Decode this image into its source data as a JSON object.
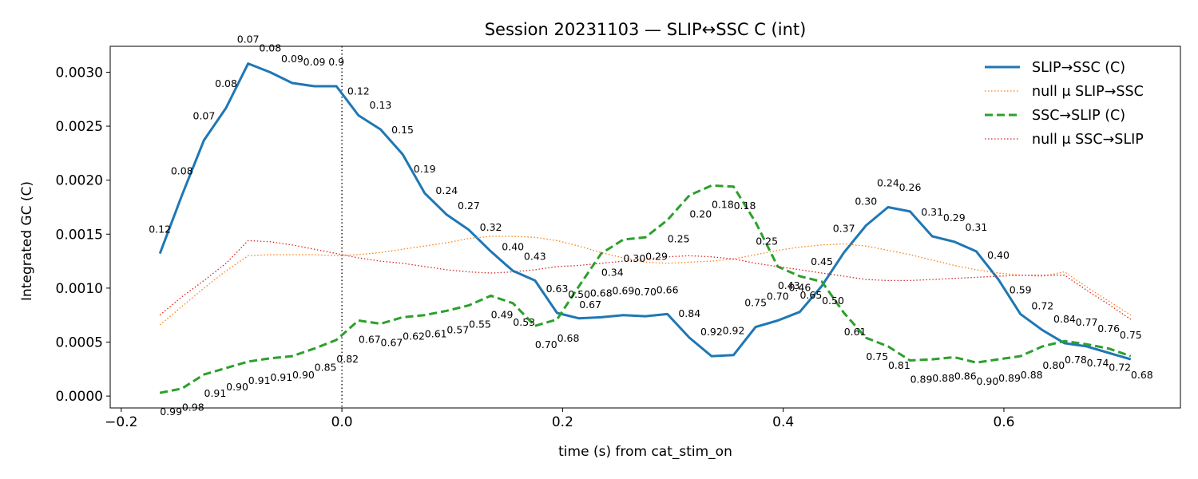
{
  "chart_data": {
    "type": "line",
    "title": "Session 20231103 — SLIP↔SSC C (int)",
    "xlabel": "time (s) from cat_stim_on",
    "ylabel": "Integrated GC (C)",
    "xlim": [
      -0.21,
      0.76
    ],
    "ylim": [
      -0.00011,
      0.00324
    ],
    "xticks": [
      -0.2,
      0.0,
      0.2,
      0.4,
      0.6
    ],
    "xtick_labels": [
      "−0.2",
      "0.0",
      "0.2",
      "0.4",
      "0.6"
    ],
    "yticks": [
      0.0,
      0.0005,
      0.001,
      0.0015,
      0.002,
      0.0025,
      0.003
    ],
    "ytick_labels": [
      "0.0000",
      "0.0005",
      "0.0010",
      "0.0015",
      "0.0020",
      "0.0025",
      "0.0030"
    ],
    "vline_x": 0.0,
    "legend_position": "top-right",
    "x": [
      -0.165,
      -0.145,
      -0.125,
      -0.105,
      -0.085,
      -0.065,
      -0.045,
      -0.025,
      -0.005,
      0.015,
      0.035,
      0.055,
      0.075,
      0.095,
      0.115,
      0.135,
      0.155,
      0.175,
      0.195,
      0.215,
      0.235,
      0.255,
      0.275,
      0.295,
      0.315,
      0.335,
      0.355,
      0.375,
      0.395,
      0.415,
      0.435,
      0.455,
      0.475,
      0.495,
      0.515,
      0.535,
      0.555,
      0.575,
      0.595,
      0.615,
      0.635,
      0.655,
      0.675,
      0.695,
      0.715
    ],
    "series": [
      {
        "name": "SLIP→SSC (C)",
        "color": "#1f77b4",
        "style": "solid",
        "values": [
          0.00132,
          0.00186,
          0.00237,
          0.00267,
          0.00308,
          0.003,
          0.0029,
          0.00287,
          0.00287,
          0.0026,
          0.00247,
          0.00224,
          0.00188,
          0.00168,
          0.00154,
          0.00134,
          0.00116,
          0.00107,
          0.00077,
          0.00072,
          0.00073,
          0.00075,
          0.00074,
          0.00076,
          0.00054,
          0.00037,
          0.00038,
          0.00064,
          0.0007,
          0.00078,
          0.00102,
          0.00133,
          0.00158,
          0.00175,
          0.00171,
          0.00148,
          0.00143,
          0.00134,
          0.00108,
          0.00076,
          0.00061,
          0.00049,
          0.00046,
          0.0004,
          0.00034
        ],
        "pvals": [
          "0.12",
          "0.08",
          "0.07",
          "0.08",
          "0.07",
          "0.08",
          "0.09",
          "0.09",
          "0.9",
          "0.12",
          "0.13",
          "0.15",
          "0.19",
          "0.24",
          "0.27",
          "0.32",
          "0.40",
          "0.43",
          "0.63",
          "0.50",
          "0.68",
          "0.69",
          "0.70",
          "0.66",
          "0.84",
          "0.92",
          "0.92",
          "0.75",
          "0.70",
          "0.46",
          "0.45",
          "0.37",
          "0.30",
          "0.24",
          "0.26",
          "0.31",
          "0.29",
          "0.31",
          "0.40",
          "0.59",
          "0.72",
          "0.84",
          "0.77",
          "0.76",
          "0.75"
        ]
      },
      {
        "name": "null μ SLIP→SSC",
        "color": "#ff7f0e",
        "style": "dotted",
        "values": [
          0.00066,
          0.00083,
          0.001,
          0.00116,
          0.0013,
          0.00131,
          0.00131,
          0.00131,
          0.0013,
          0.00131,
          0.00133,
          0.00136,
          0.00139,
          0.00142,
          0.00146,
          0.00148,
          0.00148,
          0.00147,
          0.00144,
          0.00139,
          0.00133,
          0.00128,
          0.00124,
          0.00123,
          0.00124,
          0.00125,
          0.00127,
          0.00131,
          0.00135,
          0.00138,
          0.0014,
          0.00141,
          0.00139,
          0.00135,
          0.00131,
          0.00126,
          0.00121,
          0.00117,
          0.00114,
          0.00112,
          0.00111,
          0.00115,
          0.00101,
          0.00088,
          0.00075
        ]
      },
      {
        "name": "SSC→SLIP (C)",
        "color": "#2ca02c",
        "style": "dashed",
        "values": [
          3e-05,
          7e-05,
          0.0002,
          0.00026,
          0.00032,
          0.00035,
          0.00037,
          0.00044,
          0.00052,
          0.0007,
          0.00067,
          0.00073,
          0.00075,
          0.00079,
          0.00084,
          0.00093,
          0.00086,
          0.00065,
          0.00071,
          0.00102,
          0.00132,
          0.00145,
          0.00147,
          0.00163,
          0.00186,
          0.00195,
          0.00194,
          0.00161,
          0.0012,
          0.00111,
          0.00106,
          0.00077,
          0.00054,
          0.00046,
          0.00033,
          0.00034,
          0.00036,
          0.00031,
          0.00034,
          0.00037,
          0.00046,
          0.00051,
          0.00048,
          0.00044,
          0.00037
        ],
        "pvals": [
          "0.99",
          "0.98",
          "0.91",
          "0.90",
          "0.91",
          "0.91",
          "0.90",
          "0.85",
          "0.82",
          "0.67",
          "0.67",
          "0.62",
          "0.61",
          "0.57",
          "0.55",
          "0.49",
          "0.53",
          "0.70",
          "0.68",
          "0.67",
          "0.34",
          "0.30",
          "0.29",
          "0.25",
          "0.20",
          "0.18",
          "0.18",
          "0.25",
          "0.43",
          "0.65",
          "0.50",
          "0.61",
          "0.75",
          "0.81",
          "0.89",
          "0.88",
          "0.86",
          "0.90",
          "0.89",
          "0.88",
          "0.80",
          "0.78",
          "0.74",
          "0.72",
          "0.68"
        ]
      },
      {
        "name": "null μ SSC→SLIP",
        "color": "#d62728",
        "style": "dotted",
        "values": [
          0.00075,
          0.00092,
          0.00107,
          0.00123,
          0.00144,
          0.00143,
          0.0014,
          0.00136,
          0.00132,
          0.00128,
          0.00125,
          0.00123,
          0.0012,
          0.00117,
          0.00115,
          0.00114,
          0.00115,
          0.00117,
          0.0012,
          0.00121,
          0.00123,
          0.00125,
          0.00127,
          0.00129,
          0.0013,
          0.00129,
          0.00127,
          0.00123,
          0.0012,
          0.00117,
          0.00114,
          0.00111,
          0.00108,
          0.00107,
          0.00107,
          0.00108,
          0.00109,
          0.0011,
          0.00111,
          0.00112,
          0.00112,
          0.00112,
          0.00098,
          0.00085,
          0.00071
        ]
      }
    ]
  }
}
